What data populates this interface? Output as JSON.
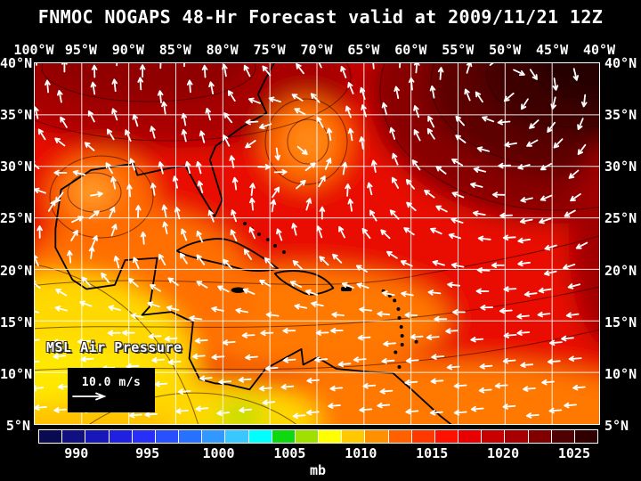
{
  "title": "FNMOC NOGAPS 48-Hr Forecast valid at 2009/11/21 12Z",
  "map": {
    "lon_ticks": [
      "100°W",
      "95°W",
      "90°W",
      "85°W",
      "80°W",
      "75°W",
      "70°W",
      "65°W",
      "60°W",
      "55°W",
      "50°W",
      "45°W",
      "40°W"
    ],
    "lat_ticks": [
      "40°N",
      "35°N",
      "30°N",
      "25°N",
      "20°N",
      "15°N",
      "10°N",
      "5°N"
    ],
    "field_label": "MSL Air Pressure",
    "wind_legend_label": "10.0 m/s"
  },
  "colorbar": {
    "unit_label": "mb",
    "tick_labels": [
      "990",
      "995",
      "1000",
      "1005",
      "1010",
      "1015",
      "1020",
      "1025"
    ],
    "cell_colors": [
      "#0a0a50",
      "#101080",
      "#1818b8",
      "#2020e0",
      "#2830f8",
      "#2850ff",
      "#2870ff",
      "#3098ff",
      "#38c8ff",
      "#00ffff",
      "#10d810",
      "#a0e000",
      "#ffff00",
      "#ffc800",
      "#ff9000",
      "#ff6000",
      "#ff3800",
      "#ff1000",
      "#e80000",
      "#c80000",
      "#a80000",
      "#800000",
      "#500000",
      "#300000"
    ]
  },
  "colors": {
    "background": "#000000",
    "text": "#ffffff",
    "gridlines": "#ffffff",
    "coastlines": "#000000",
    "wind_arrows": "#ffffff",
    "base_field_red": "#e81000"
  },
  "chart_data": {
    "type": "heatmap",
    "title": "FNMOC NOGAPS 48-Hr Forecast valid at 2009/11/21 12Z",
    "variable": "MSL Air Pressure",
    "unit": "mb",
    "x_ticks": [
      "100°W",
      "95°W",
      "90°W",
      "85°W",
      "80°W",
      "75°W",
      "70°W",
      "65°W",
      "60°W",
      "55°W",
      "50°W",
      "45°W",
      "40°W"
    ],
    "y_ticks": [
      "40°N",
      "35°N",
      "30°N",
      "25°N",
      "20°N",
      "15°N",
      "10°N",
      "5°N"
    ],
    "color_scale_values_mb": [
      990,
      995,
      1000,
      1005,
      1010,
      1015,
      1020,
      1025
    ],
    "scale_range_mb": [
      987.5,
      1027.5
    ],
    "wind_reference_speed": "10.0 m/s",
    "features": [
      {
        "feature": "strong subtropical high, clockwise wind gyre",
        "approx_location": "45°W 38°N (NE corner)",
        "approx_value_mb": 1026
      },
      {
        "feature": "secondary high / dark red ridge",
        "approx_location": "90°W-75°W 35°N-40°N",
        "approx_value_mb": 1020
      },
      {
        "feature": "low over NW Gulf of Mexico near Texas coast, cyclonic flow",
        "approx_location": "97°W 27°N",
        "approx_value_mb": 1011
      },
      {
        "feature": "trough east of US east coast, cyclonic flow",
        "approx_location": "70°W 31°N",
        "approx_value_mb": 1012
      },
      {
        "feature": "low pressure / green-yellow minimum near Panama",
        "approx_location": "79°W 6°N",
        "approx_value_mb": 1005
      },
      {
        "feature": "broad yellow 1008-1010 mb area, eastern Pacific SW corner",
        "approx_location": "100°W-85°W south of 15°N",
        "approx_value_mb": 1009
      },
      {
        "feature": "easterly trade winds across tropics",
        "approx_location": "south of 20°N",
        "approx_value_mb": null
      }
    ]
  }
}
